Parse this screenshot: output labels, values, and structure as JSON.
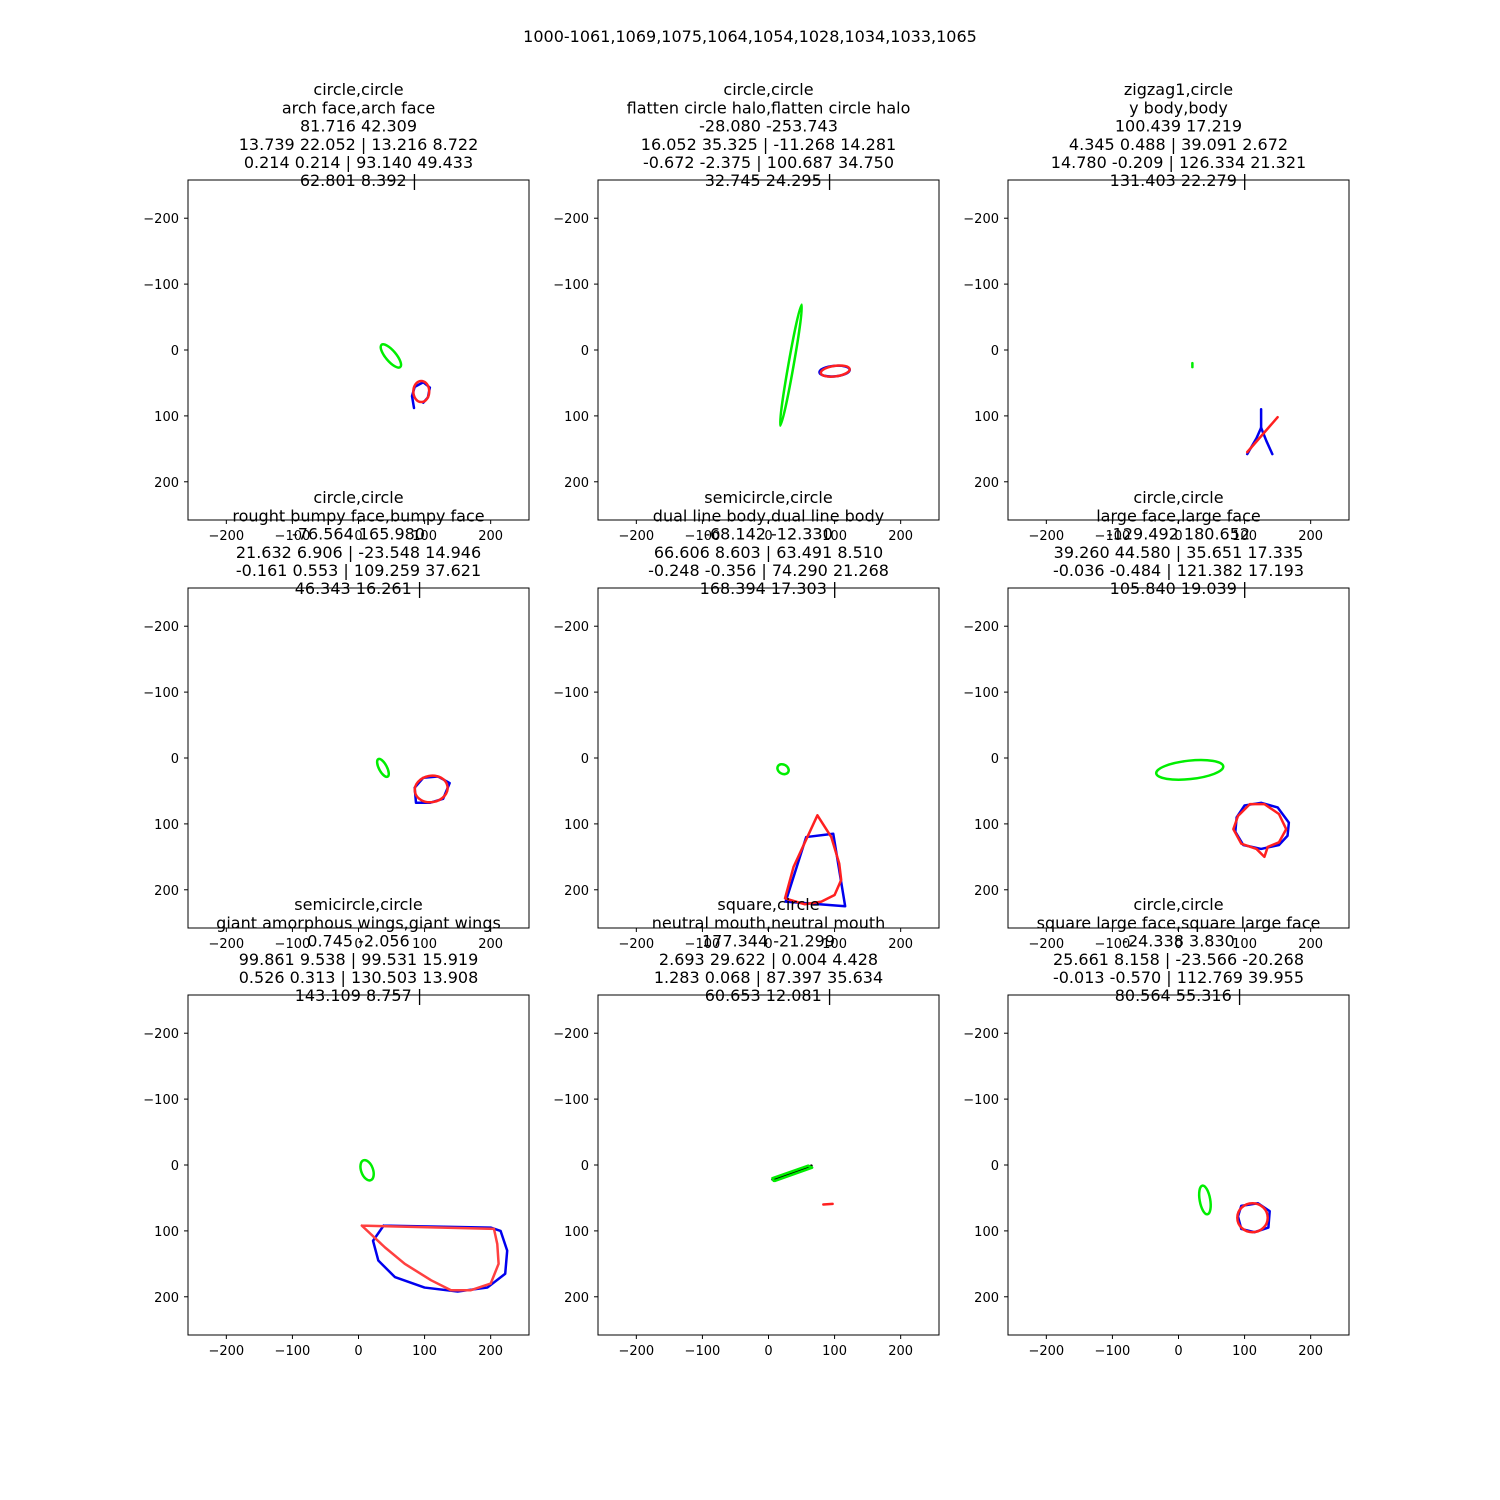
{
  "figure": {
    "suptitle": "1000-1061,1069,1075,1064,1054,1028,1034,1033,1065"
  },
  "chart_data": [
    {
      "type": "line",
      "title_lines": [
        "circle,circle",
        "arch face,arch face",
        "81.716 42.309",
        "13.739 22.052 | 13.216 8.722",
        "0.214 0.214 | 93.140 49.433",
        "62.801 8.392 |"
      ],
      "xlim": [
        -258,
        258
      ],
      "ylim": [
        258,
        -258
      ],
      "xticks": [
        -200,
        -100,
        0,
        100,
        200
      ],
      "yticks": [
        -200,
        -100,
        0,
        100,
        200
      ],
      "xtick_labels": [
        "−200",
        "−100",
        "0",
        "100",
        "200"
      ],
      "ytick_labels": [
        "−200",
        "−100",
        "0",
        "100",
        "200"
      ],
      "series": [
        {
          "color": "#00ee00",
          "shape": "ellipse",
          "cx": 49,
          "cy": 9,
          "rx": 22,
          "ry": 8,
          "angle": 50
        },
        {
          "color": "#0000ee",
          "shape": "polyline",
          "points": [
            [
              84,
              88
            ],
            [
              81,
              70
            ],
            [
              85,
              56
            ],
            [
              98,
              49
            ],
            [
              108,
              57
            ],
            [
              105,
              72
            ],
            [
              98,
              80
            ]
          ]
        },
        {
          "color": "#ff2020",
          "shape": "ellipse",
          "cx": 95,
          "cy": 63,
          "rx": 12,
          "ry": 16,
          "angle": 0
        }
      ]
    },
    {
      "type": "line",
      "title_lines": [
        "circle,circle",
        "flatten circle halo,flatten circle halo",
        "-28.080 -253.743",
        "16.052 35.325 | -11.268 14.281",
        "-0.672 -2.375 | 100.687 34.750",
        "32.745 24.295 |"
      ],
      "xlim": [
        -258,
        258
      ],
      "ylim": [
        258,
        -258
      ],
      "xticks": [
        -200,
        -100,
        0,
        100,
        200
      ],
      "yticks": [
        -200,
        -100,
        0,
        100,
        200
      ],
      "xtick_labels": [
        "−200",
        "−100",
        "0",
        "100",
        "200"
      ],
      "ytick_labels": [
        "−200",
        "−100",
        "0",
        "100",
        "200"
      ],
      "series": [
        {
          "color": "#00ee00",
          "shape": "ellipse",
          "cx": 34,
          "cy": 23,
          "rx": 93,
          "ry": 4,
          "angle": -80
        },
        {
          "color": "#0000ee",
          "shape": "ellipse",
          "cx": 100,
          "cy": 32,
          "rx": 23,
          "ry": 8,
          "angle": -5
        },
        {
          "color": "#ff2020",
          "shape": "ellipse",
          "cx": 101,
          "cy": 32,
          "rx": 22,
          "ry": 8,
          "angle": -8
        }
      ]
    },
    {
      "type": "line",
      "title_lines": [
        "zigzag1,circle",
        "y body,body",
        "100.439 17.219",
        "4.345 0.488 | 39.091 2.672",
        "14.780 -0.209 | 126.334 21.321",
        "131.403 22.279 |"
      ],
      "xlim": [
        -258,
        258
      ],
      "ylim": [
        258,
        -258
      ],
      "xticks": [
        -200,
        -100,
        0,
        100,
        200
      ],
      "yticks": [
        -200,
        -100,
        0,
        100,
        200
      ],
      "xtick_labels": [
        "−200",
        "−100",
        "0",
        "100",
        "200"
      ],
      "ytick_labels": [
        "−200",
        "−100",
        "0",
        "100",
        "200"
      ],
      "series": [
        {
          "color": "#00ee00",
          "shape": "polyline",
          "points": [
            [
              21,
              20
            ],
            [
              21,
              26
            ]
          ]
        },
        {
          "color": "#0000ee",
          "shape": "polyline",
          "points": [
            [
              125,
              90
            ],
            [
              125,
              118
            ],
            [
              118,
              134
            ],
            [
              104,
              158
            ]
          ]
        },
        {
          "color": "#0000ee",
          "shape": "polyline",
          "points": [
            [
              125,
              118
            ],
            [
              133,
              138
            ],
            [
              142,
              158
            ]
          ]
        },
        {
          "color": "#ff2020",
          "shape": "polyline",
          "points": [
            [
              104,
              155
            ],
            [
              150,
              102
            ]
          ]
        }
      ]
    },
    {
      "type": "line",
      "title_lines": [
        "circle,circle",
        "rought bumpy face,bumpy face",
        "-76.564 165.980",
        "21.632 6.906 | -23.548 14.946",
        "-0.161 0.553 | 109.259 37.621",
        "46.343 16.261 |"
      ],
      "xlim": [
        -258,
        258
      ],
      "ylim": [
        258,
        -258
      ],
      "xticks": [
        -200,
        -100,
        0,
        100,
        200
      ],
      "yticks": [
        -200,
        -100,
        0,
        100,
        200
      ],
      "xtick_labels": [
        "−200",
        "−100",
        "0",
        "100",
        "200"
      ],
      "ytick_labels": [
        "−200",
        "−100",
        "0",
        "100",
        "200"
      ],
      "series": [
        {
          "color": "#00ee00",
          "shape": "ellipse",
          "cx": 37,
          "cy": 15,
          "rx": 15,
          "ry": 6,
          "angle": 62
        },
        {
          "color": "#0000ee",
          "shape": "polyline",
          "points": [
            [
              87,
              68
            ],
            [
              85,
              45
            ],
            [
              98,
              30
            ],
            [
              120,
              28
            ],
            [
              138,
              38
            ],
            [
              128,
              62
            ],
            [
              108,
              68
            ],
            [
              87,
              68
            ]
          ]
        },
        {
          "color": "#ff2020",
          "shape": "ellipse",
          "cx": 110,
          "cy": 47,
          "rx": 25,
          "ry": 20,
          "angle": -10
        }
      ]
    },
    {
      "type": "line",
      "title_lines": [
        "semicircle,circle",
        "dual line body,dual line body",
        "-68.142 -12.330",
        "66.606 8.603 | 63.491 8.510",
        "-0.248 -0.356 | 74.290 21.268",
        "168.394 17.303 |"
      ],
      "xlim": [
        -258,
        258
      ],
      "ylim": [
        258,
        -258
      ],
      "xticks": [
        -200,
        -100,
        0,
        100,
        200
      ],
      "yticks": [
        -200,
        -100,
        0,
        100,
        200
      ],
      "xtick_labels": [
        "−200",
        "−100",
        "0",
        "100",
        "200"
      ],
      "ytick_labels": [
        "−200",
        "−100",
        "0",
        "100",
        "200"
      ],
      "series": [
        {
          "color": "#00ee00",
          "shape": "ellipse",
          "cx": 22,
          "cy": 17,
          "rx": 9,
          "ry": 7,
          "angle": 30
        },
        {
          "color": "#0000ee",
          "shape": "polyline",
          "points": [
            [
              26,
              218
            ],
            [
              57,
              120
            ],
            [
              98,
              115
            ],
            [
              116,
              225
            ],
            [
              26,
              218
            ]
          ]
        },
        {
          "color": "#ff2020",
          "shape": "polyline",
          "points": [
            [
              74,
              87
            ],
            [
              38,
              165
            ],
            [
              25,
              213
            ],
            [
              55,
              222
            ],
            [
              80,
              218
            ],
            [
              100,
              208
            ],
            [
              110,
              185
            ],
            [
              107,
              160
            ],
            [
              95,
              120
            ],
            [
              74,
              87
            ]
          ]
        }
      ]
    },
    {
      "type": "line",
      "title_lines": [
        "circle,circle",
        "large face,large face",
        "-129.492 180.652",
        "39.260 44.580 | 35.651 17.335",
        "-0.036 -0.484 | 121.382 17.193",
        "105.840 19.039 |"
      ],
      "xlim": [
        -258,
        258
      ],
      "ylim": [
        258,
        -258
      ],
      "xticks": [
        -200,
        -100,
        0,
        100,
        200
      ],
      "yticks": [
        -200,
        -100,
        0,
        100,
        200
      ],
      "xtick_labels": [
        "−200",
        "−100",
        "0",
        "100",
        "200"
      ],
      "ytick_labels": [
        "−200",
        "−100",
        "0",
        "100",
        "200"
      ],
      "series": [
        {
          "color": "#00ee00",
          "shape": "ellipse",
          "cx": 17,
          "cy": 18,
          "rx": 51,
          "ry": 14,
          "angle": -6
        },
        {
          "color": "#0000ee",
          "shape": "polyline",
          "points": [
            [
              88,
              90
            ],
            [
              100,
              72
            ],
            [
              125,
              68
            ],
            [
              150,
              75
            ],
            [
              167,
              98
            ],
            [
              165,
              118
            ],
            [
              152,
              132
            ],
            [
              125,
              138
            ],
            [
              98,
              132
            ],
            [
              86,
              112
            ],
            [
              88,
              90
            ]
          ]
        },
        {
          "color": "#ff2020",
          "shape": "polyline",
          "points": [
            [
              90,
              88
            ],
            [
              108,
              70
            ],
            [
              130,
              70
            ],
            [
              152,
              85
            ],
            [
              163,
              108
            ],
            [
              152,
              128
            ],
            [
              135,
              135
            ],
            [
              130,
              150
            ],
            [
              118,
              138
            ],
            [
              95,
              130
            ],
            [
              83,
              108
            ],
            [
              90,
              88
            ]
          ]
        }
      ]
    },
    {
      "type": "line",
      "title_lines": [
        "semicircle,circle",
        "giant amorphous wings,giant wings",
        "0.745 -2.056",
        "99.861 9.538 | 99.531 15.919",
        "0.526 0.313 | 130.503 13.908",
        "143.109 8.757 |"
      ],
      "xlim": [
        -258,
        258
      ],
      "ylim": [
        258,
        -258
      ],
      "xticks": [
        -200,
        -100,
        0,
        100,
        200
      ],
      "yticks": [
        -200,
        -100,
        0,
        100,
        200
      ],
      "xtick_labels": [
        "−200",
        "−100",
        "0",
        "100",
        "200"
      ],
      "ytick_labels": [
        "−200",
        "−100",
        "0",
        "100",
        "200"
      ],
      "series": [
        {
          "color": "#00ee00",
          "shape": "ellipse",
          "cx": 13,
          "cy": 8,
          "rx": 16,
          "ry": 9,
          "angle": 70
        },
        {
          "color": "#0000ee",
          "shape": "polyline",
          "points": [
            [
              38,
              92
            ],
            [
              22,
              115
            ],
            [
              30,
              145
            ],
            [
              55,
              170
            ],
            [
              100,
              186
            ],
            [
              150,
              192
            ],
            [
              195,
              186
            ],
            [
              222,
              165
            ],
            [
              225,
              130
            ],
            [
              215,
              100
            ],
            [
              200,
              95
            ],
            [
              38,
              92
            ]
          ]
        },
        {
          "color": "#ff4040",
          "shape": "polyline",
          "points": [
            [
              5,
              92
            ],
            [
              40,
              125
            ],
            [
              70,
              150
            ],
            [
              110,
              175
            ],
            [
              140,
              190
            ],
            [
              170,
              190
            ],
            [
              200,
              180
            ],
            [
              212,
              150
            ],
            [
              210,
              120
            ],
            [
              205,
              97
            ],
            [
              5,
              92
            ]
          ]
        }
      ]
    },
    {
      "type": "line",
      "title_lines": [
        "square,circle",
        "neutral mouth,neutral mouth",
        "177.344 -21.299",
        "2.693 29.622 | 0.004 4.428",
        "1.283 0.068 | 87.397 35.634",
        "60.653 12.081 |"
      ],
      "xlim": [
        -258,
        258
      ],
      "ylim": [
        258,
        -258
      ],
      "xticks": [
        -200,
        -100,
        0,
        100,
        200
      ],
      "yticks": [
        -200,
        -100,
        0,
        100,
        200
      ],
      "xtick_labels": [
        "−200",
        "−100",
        "0",
        "100",
        "200"
      ],
      "ytick_labels": [
        "−200",
        "−100",
        "0",
        "100",
        "200"
      ],
      "series": [
        {
          "color": "#000000",
          "shape": "polyline",
          "points": [
            [
              6,
              22
            ],
            [
              65,
              1
            ]
          ]
        },
        {
          "color": "#00ee00",
          "shape": "polyline",
          "points": [
            [
              8,
              24
            ],
            [
              6,
              20
            ],
            [
              60,
              1
            ],
            [
              66,
              4
            ],
            [
              10,
              24
            ],
            [
              8,
              24
            ]
          ]
        },
        {
          "color": "#ff2020",
          "shape": "polyline",
          "points": [
            [
              83,
              60
            ],
            [
              97,
              59
            ]
          ]
        }
      ]
    },
    {
      "type": "line",
      "title_lines": [
        "circle,circle",
        "square large face,square large face",
        "-24.338 3.830",
        "25.661 8.158 | -23.566 -20.268",
        "-0.013 -0.570 | 112.769 39.955",
        "80.564 55.316 |"
      ],
      "xlim": [
        -258,
        258
      ],
      "ylim": [
        258,
        -258
      ],
      "xticks": [
        -200,
        -100,
        0,
        100,
        200
      ],
      "yticks": [
        -200,
        -100,
        0,
        100,
        200
      ],
      "xtick_labels": [
        "−200",
        "−100",
        "0",
        "100",
        "200"
      ],
      "ytick_labels": [
        "−200",
        "−100",
        "0",
        "100",
        "200"
      ],
      "series": [
        {
          "color": "#00ee00",
          "shape": "ellipse",
          "cx": 40,
          "cy": 53,
          "rx": 22,
          "ry": 8,
          "angle": 80
        },
        {
          "color": "#0000ee",
          "shape": "polyline",
          "points": [
            [
              95,
              62
            ],
            [
              120,
              58
            ],
            [
              138,
              70
            ],
            [
              136,
              95
            ],
            [
              115,
              102
            ],
            [
              95,
              97
            ],
            [
              90,
              78
            ],
            [
              95,
              62
            ]
          ]
        },
        {
          "color": "#ff2020",
          "shape": "ellipse",
          "cx": 112,
          "cy": 80,
          "rx": 23,
          "ry": 22,
          "angle": 0
        }
      ]
    }
  ]
}
